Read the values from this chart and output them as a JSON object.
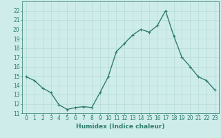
{
  "x": [
    0,
    1,
    2,
    3,
    4,
    5,
    6,
    7,
    8,
    9,
    10,
    11,
    12,
    13,
    14,
    15,
    16,
    17,
    18,
    19,
    20,
    21,
    22,
    23
  ],
  "y": [
    14.9,
    14.5,
    13.7,
    13.2,
    11.9,
    11.4,
    11.6,
    11.7,
    11.6,
    13.2,
    14.9,
    17.6,
    18.5,
    19.4,
    20.0,
    19.7,
    20.4,
    22.0,
    19.3,
    17.0,
    16.0,
    14.9,
    14.5,
    13.5
  ],
  "line_color": "#2e7d6e",
  "marker": "+",
  "marker_size": 3,
  "bg_color": "#ceecea",
  "grid_color": "#b0d8d4",
  "axis_color": "#2e7d6e",
  "xlabel": "Humidex (Indice chaleur)",
  "ylim": [
    11,
    23
  ],
  "xlim": [
    -0.5,
    23.5
  ],
  "yticks": [
    11,
    12,
    13,
    14,
    15,
    16,
    17,
    18,
    19,
    20,
    21,
    22
  ],
  "xticks": [
    0,
    1,
    2,
    3,
    4,
    5,
    6,
    7,
    8,
    9,
    10,
    11,
    12,
    13,
    14,
    15,
    16,
    17,
    18,
    19,
    20,
    21,
    22,
    23
  ],
  "xlabel_fontsize": 6.5,
  "tick_fontsize": 5.5,
  "line_width": 1.0
}
